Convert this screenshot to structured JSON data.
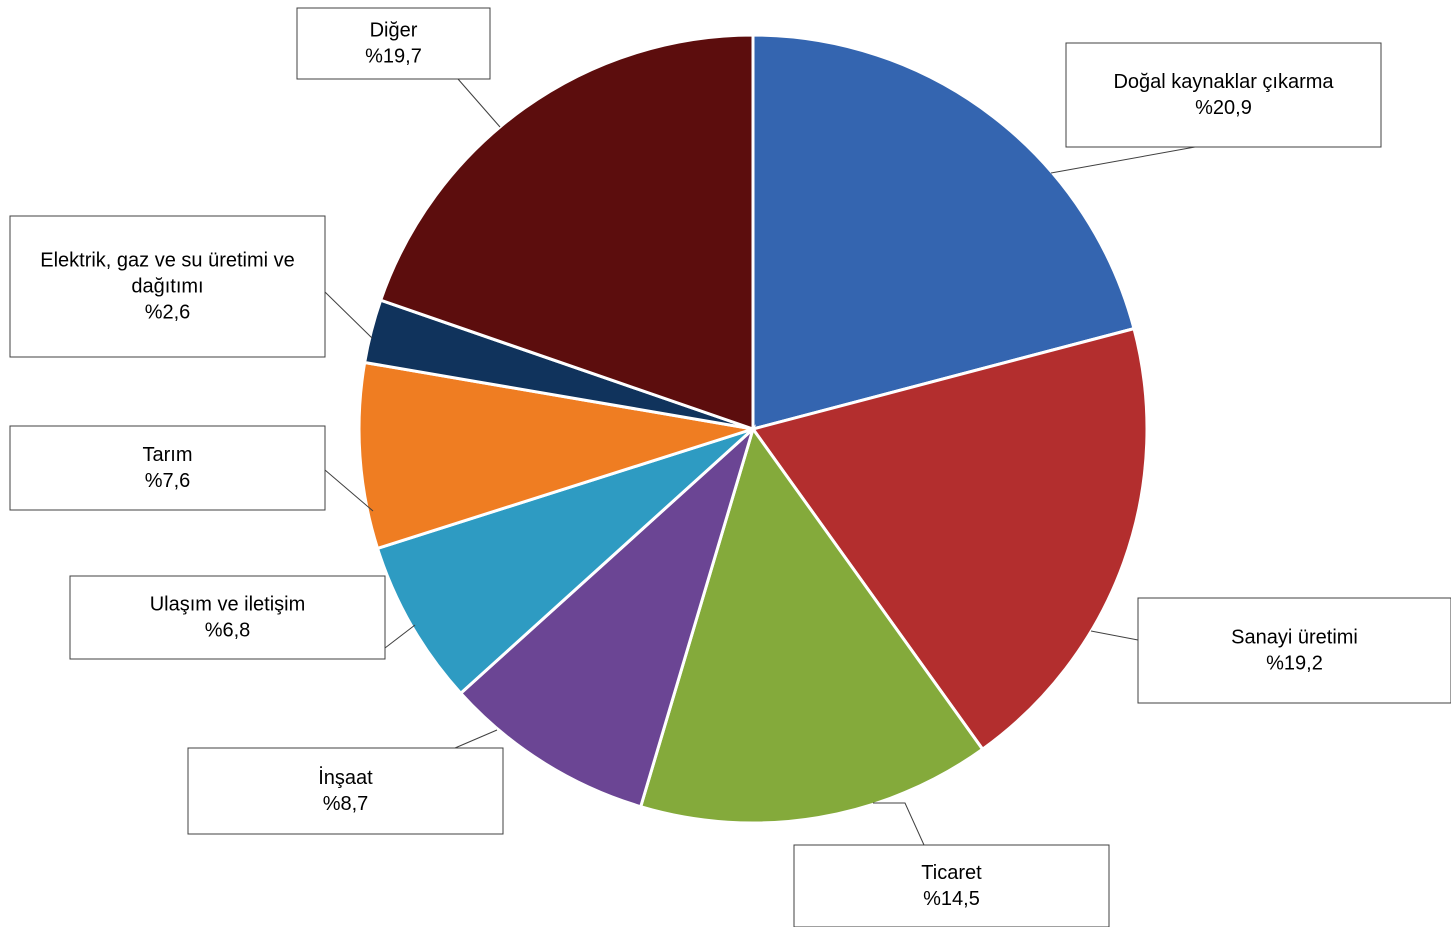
{
  "chart_data": {
    "type": "pie",
    "title": "",
    "start_angle_deg": 0,
    "direction": "clockwise",
    "slices": [
      {
        "name": "Doğal kaynaklar çıkarma",
        "value": 20.9,
        "label": "%20,9",
        "color": "#3465b0"
      },
      {
        "name": "Sanayi üretimi",
        "value": 19.2,
        "label": "%19,2",
        "color": "#b32e2e"
      },
      {
        "name": "Ticaret",
        "value": 14.5,
        "label": "%14,5",
        "color": "#84aa3b"
      },
      {
        "name": "İnşaat",
        "value": 8.7,
        "label": "%8,7",
        "color": "#6b4594"
      },
      {
        "name": "Ulaşım ve iletişim",
        "value": 6.8,
        "label": "%6,8",
        "color": "#2e9bc2"
      },
      {
        "name": "Tarım",
        "value": 7.6,
        "label": "%7,6",
        "color": "#ef7d22"
      },
      {
        "name": "Elektrik, gaz ve su üretimi ve dağıtımı",
        "name_lines": [
          "Elektrik, gaz ve su üretimi ve",
          "dağıtımı"
        ],
        "value": 2.6,
        "label": "%2,6",
        "color": "#10335c"
      },
      {
        "name": "Diğer",
        "value": 19.7,
        "label": "%19,7",
        "color": "#5c0d0d"
      }
    ]
  }
}
